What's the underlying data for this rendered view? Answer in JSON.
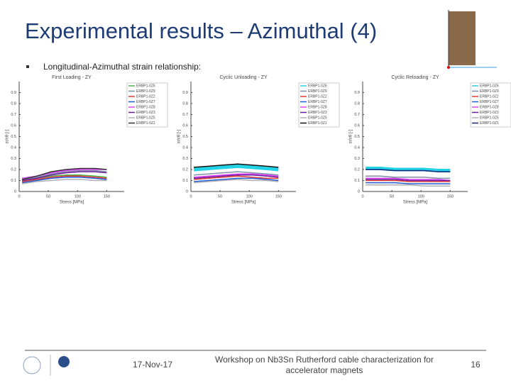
{
  "slide": {
    "title": "Experimental results – Azimuthal (4)",
    "bullet": "Longitudinal-Azimuthal strain relationship:",
    "date": "17-Nov-17",
    "footer_line1": "Workshop on Nb3Sn Rutherford cable characterization for",
    "footer_line2": "accelerator magnets",
    "page": "16"
  },
  "chart_data": [
    {
      "type": "line",
      "title": "First Loading - ZY",
      "xlabel": "Stress [MPa]",
      "ylabel": "εr/εθ [-]",
      "x": [
        5,
        30,
        55,
        80,
        105,
        130,
        150
      ],
      "xlim": [
        0,
        180
      ],
      "ylim": [
        0,
        1
      ],
      "xticks": [
        0,
        50,
        100,
        150
      ],
      "yticks": [
        0,
        0.1,
        0.2,
        0.3,
        0.4,
        0.5,
        0.6,
        0.7,
        0.8,
        0.9
      ],
      "series": [
        {
          "name": "ERBP1-0Z6",
          "color": "#4caf50",
          "values": [
            0.1,
            0.12,
            0.14,
            0.15,
            0.15,
            0.14,
            0.13
          ]
        },
        {
          "name": "ERBP1-0Z9",
          "color": "#7f8fa6",
          "values": [
            0.11,
            0.13,
            0.16,
            0.18,
            0.19,
            0.19,
            0.18
          ]
        },
        {
          "name": "ERBP1-0Z2",
          "color": "#e53935",
          "values": [
            0.09,
            0.11,
            0.13,
            0.14,
            0.14,
            0.13,
            0.12
          ]
        },
        {
          "name": "ERBP1-0Z7",
          "color": "#1e5bd8",
          "values": [
            0.08,
            0.1,
            0.12,
            0.13,
            0.13,
            0.12,
            0.11
          ]
        },
        {
          "name": "ERBP1-0Z8",
          "color": "#e040fb",
          "values": [
            0.12,
            0.14,
            0.17,
            0.19,
            0.2,
            0.2,
            0.2
          ]
        },
        {
          "name": "ERBP1-0Z3",
          "color": "#6a1b9a",
          "values": [
            0.1,
            0.12,
            0.15,
            0.17,
            0.18,
            0.18,
            0.17
          ]
        },
        {
          "name": "ERBP1-0Z5",
          "color": "#b0b0b0",
          "values": [
            0.07,
            0.09,
            0.1,
            0.11,
            0.11,
            0.1,
            0.1
          ]
        },
        {
          "name": "ERBP1-0Z1",
          "color": "#333333",
          "values": [
            0.11,
            0.14,
            0.18,
            0.2,
            0.21,
            0.21,
            0.2
          ]
        }
      ]
    },
    {
      "type": "line",
      "title": "Cyclic Unloading - ZY",
      "xlabel": "Stress [MPa]",
      "ylabel": "εr/εθ [-]",
      "x": [
        5,
        30,
        55,
        80,
        105,
        130,
        150
      ],
      "xlim": [
        0,
        180
      ],
      "ylim": [
        0,
        1
      ],
      "xticks": [
        0,
        50,
        100,
        150
      ],
      "yticks": [
        0,
        0.1,
        0.2,
        0.3,
        0.4,
        0.5,
        0.6,
        0.7,
        0.8,
        0.9
      ],
      "series": [
        {
          "name": "ERBP1-0Z6",
          "color": "#22d3e6",
          "values": [
            0.2,
            0.21,
            0.22,
            0.23,
            0.22,
            0.21,
            0.2
          ]
        },
        {
          "name": "ERBP1-0Z9",
          "color": "#7f8fa6",
          "values": [
            0.15,
            0.16,
            0.17,
            0.18,
            0.17,
            0.16,
            0.15
          ]
        },
        {
          "name": "ERBP1-0Z2",
          "color": "#e53935",
          "values": [
            0.11,
            0.12,
            0.13,
            0.14,
            0.13,
            0.12,
            0.12
          ]
        },
        {
          "name": "ERBP1-0Z7",
          "color": "#1e5bd8",
          "values": [
            0.09,
            0.1,
            0.11,
            0.12,
            0.12,
            0.11,
            0.1
          ]
        },
        {
          "name": "ERBP1-0Z8",
          "color": "#e040fb",
          "values": [
            0.13,
            0.14,
            0.15,
            0.16,
            0.16,
            0.15,
            0.14
          ]
        },
        {
          "name": "ERBP1-0Z3",
          "color": "#6a1b9a",
          "values": [
            0.12,
            0.13,
            0.14,
            0.15,
            0.15,
            0.14,
            0.13
          ]
        },
        {
          "name": "ERBP1-0Z5",
          "color": "#b0b0b0",
          "values": [
            0.08,
            0.09,
            0.1,
            0.11,
            0.1,
            0.1,
            0.09
          ]
        },
        {
          "name": "ERBP1-0Z1",
          "color": "#111111",
          "values": [
            0.22,
            0.23,
            0.24,
            0.25,
            0.24,
            0.23,
            0.22
          ]
        }
      ]
    },
    {
      "type": "line",
      "title": "Cyclic Reloading - ZY",
      "xlabel": "Stress [MPa]",
      "ylabel": "εr/εθ [-]",
      "x": [
        5,
        30,
        55,
        80,
        105,
        130,
        150
      ],
      "xlim": [
        0,
        180
      ],
      "ylim": [
        0,
        1
      ],
      "xticks": [
        0,
        50,
        100,
        150
      ],
      "yticks": [
        0,
        0.1,
        0.2,
        0.3,
        0.4,
        0.5,
        0.6,
        0.7,
        0.8,
        0.9
      ],
      "series": [
        {
          "name": "ERBP1-0Z6",
          "color": "#22d3e6",
          "values": [
            0.21,
            0.21,
            0.2,
            0.2,
            0.2,
            0.19,
            0.19
          ]
        },
        {
          "name": "ERBP1-0Z9",
          "color": "#7f8fa6",
          "values": [
            0.14,
            0.14,
            0.13,
            0.13,
            0.13,
            0.12,
            0.12
          ]
        },
        {
          "name": "ERBP1-0Z2",
          "color": "#e53935",
          "values": [
            0.1,
            0.1,
            0.1,
            0.09,
            0.09,
            0.09,
            0.09
          ]
        },
        {
          "name": "ERBP1-0Z7",
          "color": "#1e5bd8",
          "values": [
            0.08,
            0.08,
            0.08,
            0.07,
            0.07,
            0.07,
            0.07
          ]
        },
        {
          "name": "ERBP1-0Z8",
          "color": "#e040fb",
          "values": [
            0.12,
            0.12,
            0.12,
            0.11,
            0.11,
            0.11,
            0.1
          ]
        },
        {
          "name": "ERBP1-0Z3",
          "color": "#6a1b9a",
          "values": [
            0.11,
            0.11,
            0.11,
            0.1,
            0.1,
            0.1,
            0.1
          ]
        },
        {
          "name": "ERBP1-0Z5",
          "color": "#b0b0b0",
          "values": [
            0.06,
            0.06,
            0.06,
            0.06,
            0.05,
            0.05,
            0.05
          ]
        },
        {
          "name": "ERBP1-0Z1",
          "color": "#1a237e",
          "values": [
            0.2,
            0.2,
            0.19,
            0.19,
            0.19,
            0.18,
            0.18
          ]
        }
      ]
    }
  ]
}
